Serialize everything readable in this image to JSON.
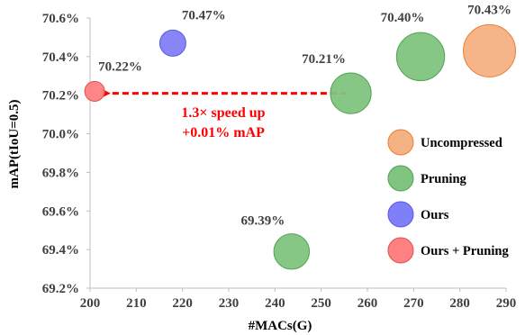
{
  "chart_data": {
    "type": "scatter",
    "title": "",
    "xlabel": "#MACs(G)",
    "ylabel": "mAP(tIoU=0.5)",
    "xlim": [
      200,
      290
    ],
    "ylim": [
      69.2,
      70.6
    ],
    "x_ticks": [
      "200",
      "210",
      "220",
      "230",
      "240",
      "250",
      "260",
      "270",
      "280",
      "290"
    ],
    "y_ticks": [
      "69.2%",
      "69.4%",
      "69.6%",
      "69.8%",
      "70.0%",
      "70.2%",
      "70.4%",
      "70.6%"
    ],
    "grid": false,
    "legend_position": "right",
    "series": [
      {
        "name": "Uncompressed",
        "color": "#f4b183",
        "stroke": "#ed7d31",
        "points": [
          {
            "x": 286.4,
            "y": 70.43,
            "label": "70.43%",
            "size": 1.0
          }
        ]
      },
      {
        "name": "Pruning",
        "color": "#7fc47f",
        "stroke": "#55a155",
        "points": [
          {
            "x": 271.5,
            "y": 70.4,
            "label": "70.40%",
            "size": 0.92
          },
          {
            "x": 256.4,
            "y": 70.21,
            "label": "70.21%",
            "size": 0.78
          },
          {
            "x": 243.6,
            "y": 69.39,
            "label": "69.39%",
            "size": 0.68
          }
        ]
      },
      {
        "name": "Ours",
        "color": "#7f7ff7",
        "stroke": "#5a5ae6",
        "points": [
          {
            "x": 217.9,
            "y": 70.47,
            "label": "70.47%",
            "size": 0.5
          }
        ]
      },
      {
        "name": "Ours + Pruning",
        "color": "#ff8080",
        "stroke": "#e05050",
        "points": [
          {
            "x": 201.0,
            "y": 70.22,
            "label": "70.22%",
            "size": 0.38
          }
        ]
      }
    ],
    "annotation": {
      "lines": [
        "1.3× speed up",
        "+0.01% mAP"
      ],
      "color": "#ff0000",
      "arrow_from": {
        "x": 255.5,
        "y": 70.21
      },
      "arrow_to": {
        "x": 202.5,
        "y": 70.21
      }
    }
  }
}
